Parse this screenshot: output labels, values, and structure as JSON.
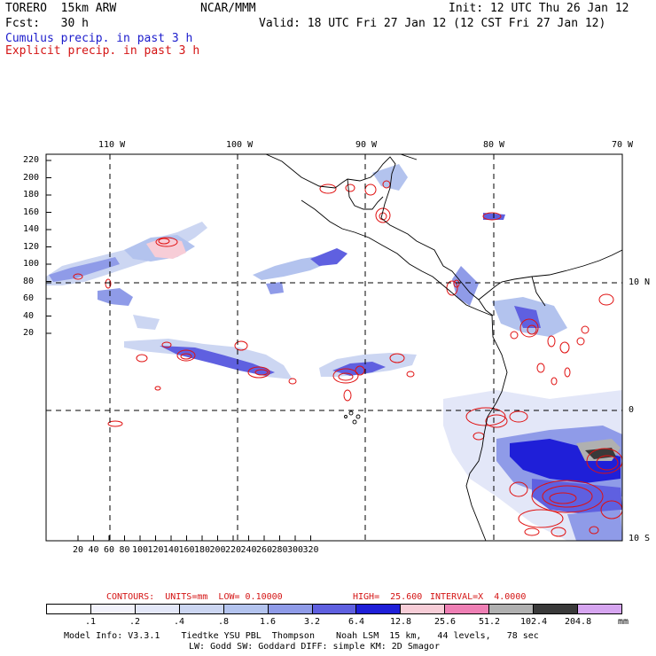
{
  "header": {
    "model": "TORERO  15km ARW",
    "org": "NCAR/MMM",
    "init": "Init: 12 UTC Thu 26 Jan 12",
    "fcst": "Fcst:   30 h",
    "valid": "Valid: 18 UTC Fri 27 Jan 12 (12 CST Fri 27 Jan 12)",
    "field1": "Cumulus precip. in past 3 h",
    "field2": "Explicit precip. in past 3 h"
  },
  "map": {
    "lon_labels": [
      "110 W",
      "100 W",
      "90 W",
      "80 W",
      "70 W"
    ],
    "lat_labels": [
      "10 N",
      "0",
      "10 S"
    ],
    "y_ticks": [
      "220",
      "200",
      "180",
      "160",
      "140",
      "120",
      "100",
      "80",
      "60",
      "40",
      "20"
    ],
    "x_ticks": [
      "20",
      "40",
      "60",
      "80",
      "100",
      "120",
      "140",
      "160",
      "180",
      "200",
      "220",
      "240",
      "260",
      "280",
      "300",
      "320"
    ]
  },
  "contours": {
    "units_label": "CONTOURS:  UNITS=mm  LOW= 0.10000",
    "high_label": "HIGH=  25.600",
    "interval_label": "INTERVAL=X  4.0000"
  },
  "colorbar": {
    "labels": [
      ".1",
      ".2",
      ".4",
      ".8",
      "1.6",
      "3.2",
      "6.4",
      "12.8",
      "25.6",
      "51.2",
      "102.4",
      "204.8"
    ],
    "unit": "mm",
    "colors": [
      "#ffffff",
      "#f2f2fb",
      "#e3e7f8",
      "#ccd6f2",
      "#b3c3ee",
      "#8f9be8",
      "#5f60e0",
      "#1f1fd8",
      "#f7cdd7",
      "#ee7fb4",
      "#b0b0b0",
      "#3a3a3a",
      "#d6a5f0"
    ]
  },
  "footer": {
    "line1": "Model Info: V3.3.1    Tiedtke YSU PBL  Thompson    Noah LSM  15 km,   44 levels,   78 sec",
    "line2": "LW: Godd SW: Goddard DIFF: simple KM: 2D Smagor"
  }
}
